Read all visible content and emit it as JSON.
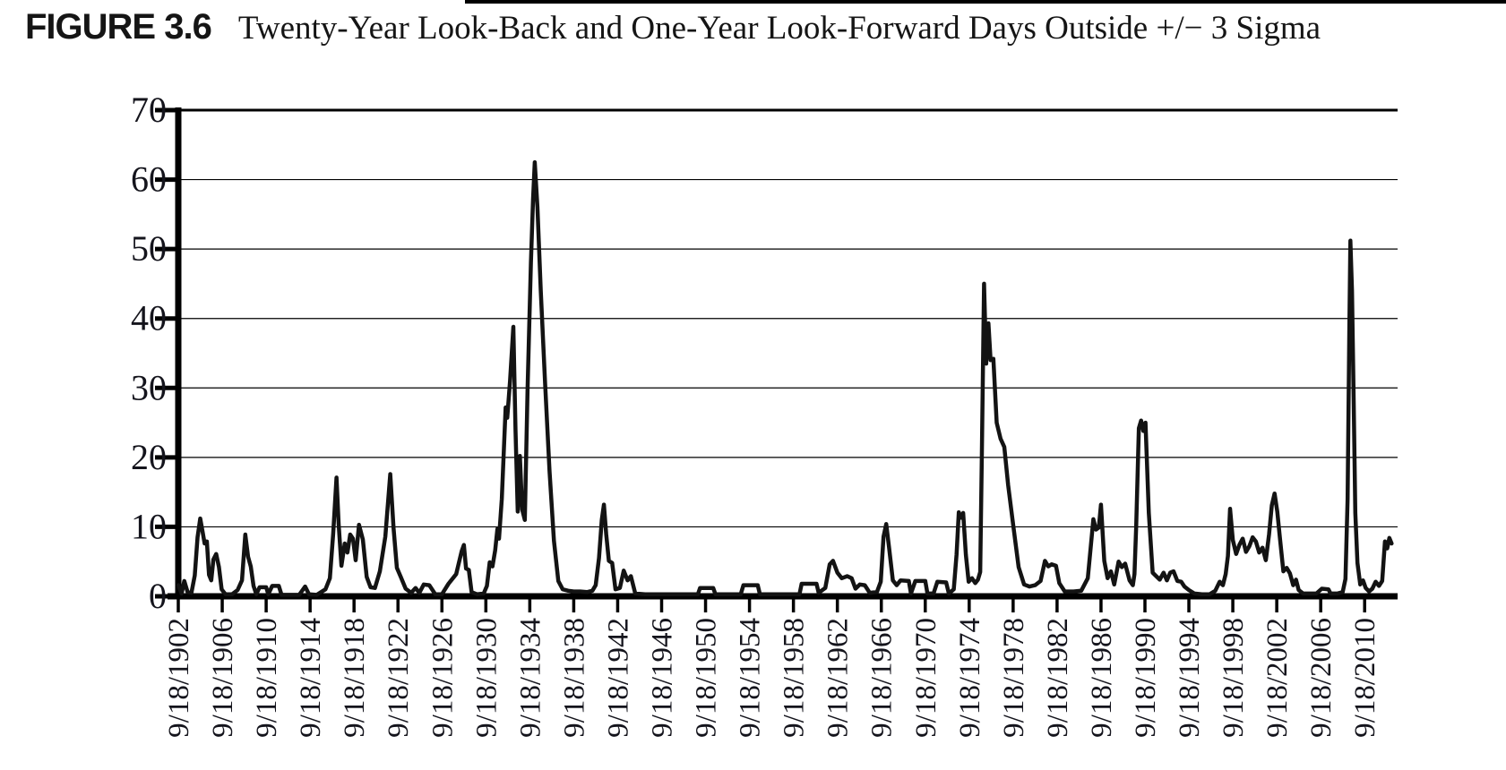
{
  "figure": {
    "label": "FIGURE 3.6",
    "title": "Twenty-Year Look-Back and One-Year Look-Forward Days Outside +/− 3 Sigma"
  },
  "chart_data": {
    "type": "line",
    "title": "Twenty-Year Look-Back and One-Year Look-Forward Days Outside +/− 3 Sigma",
    "xlabel": "",
    "ylabel": "",
    "ylim": [
      0,
      70
    ],
    "xlim": [
      1902,
      2013
    ],
    "y_ticks": [
      0,
      10,
      20,
      30,
      40,
      50,
      60,
      70
    ],
    "x_tick_years": [
      1902,
      1906,
      1910,
      1914,
      1918,
      1922,
      1926,
      1930,
      1934,
      1938,
      1942,
      1946,
      1950,
      1954,
      1958,
      1962,
      1966,
      1970,
      1974,
      1978,
      1982,
      1986,
      1990,
      1994,
      1998,
      2002,
      2006,
      2010
    ],
    "x_tick_labels": [
      "9/18/1902",
      "9/18/1906",
      "9/18/1910",
      "9/18/1914",
      "9/18/1918",
      "9/18/1922",
      "9/18/1926",
      "9/18/1930",
      "9/18/1934",
      "9/18/1938",
      "9/18/1942",
      "9/18/1946",
      "9/18/1950",
      "9/18/1954",
      "9/18/1958",
      "9/18/1962",
      "9/18/1966",
      "9/18/1970",
      "9/18/1974",
      "9/18/1978",
      "9/18/1982",
      "9/18/1986",
      "9/18/1990",
      "9/18/1994",
      "9/18/1998",
      "9/18/2002",
      "9/18/2006",
      "9/18/2010"
    ],
    "grid": "horizontal",
    "legend": "none",
    "line_color": "#131313",
    "series": [
      {
        "name": "days-outside-3-sigma",
        "points": [
          [
            1902.0,
            1.6
          ],
          [
            1902.3,
            0.4
          ],
          [
            1902.55,
            2.2
          ],
          [
            1902.85,
            0.6
          ],
          [
            1903.2,
            0.5
          ],
          [
            1903.5,
            3.0
          ],
          [
            1903.75,
            8.5
          ],
          [
            1904.0,
            11.2
          ],
          [
            1904.2,
            9.4
          ],
          [
            1904.4,
            7.6
          ],
          [
            1904.6,
            7.9
          ],
          [
            1904.8,
            3.1
          ],
          [
            1905.0,
            2.3
          ],
          [
            1905.2,
            5.3
          ],
          [
            1905.45,
            6.1
          ],
          [
            1905.7,
            4.2
          ],
          [
            1905.95,
            1.0
          ],
          [
            1906.3,
            0.3
          ],
          [
            1906.9,
            0.3
          ],
          [
            1907.4,
            0.9
          ],
          [
            1907.8,
            2.3
          ],
          [
            1908.1,
            8.9
          ],
          [
            1908.35,
            5.7
          ],
          [
            1908.6,
            4.3
          ],
          [
            1908.85,
            1.5
          ],
          [
            1909.1,
            0.3
          ],
          [
            1909.4,
            1.3
          ],
          [
            1910.0,
            1.3
          ],
          [
            1910.2,
            0.3
          ],
          [
            1910.55,
            1.5
          ],
          [
            1911.15,
            1.5
          ],
          [
            1911.4,
            0.2
          ],
          [
            1912.2,
            0.2
          ],
          [
            1913.0,
            0.2
          ],
          [
            1913.55,
            1.4
          ],
          [
            1913.9,
            0.3
          ],
          [
            1914.6,
            0.2
          ],
          [
            1915.4,
            1.0
          ],
          [
            1915.8,
            2.6
          ],
          [
            1916.1,
            9.0
          ],
          [
            1916.4,
            17.1
          ],
          [
            1916.6,
            10.4
          ],
          [
            1916.85,
            4.4
          ],
          [
            1917.15,
            7.6
          ],
          [
            1917.4,
            6.3
          ],
          [
            1917.65,
            8.9
          ],
          [
            1917.9,
            8.3
          ],
          [
            1918.15,
            5.2
          ],
          [
            1918.45,
            10.3
          ],
          [
            1918.8,
            8.2
          ],
          [
            1919.15,
            2.8
          ],
          [
            1919.5,
            1.3
          ],
          [
            1919.9,
            1.2
          ],
          [
            1920.35,
            3.6
          ],
          [
            1920.85,
            8.6
          ],
          [
            1921.3,
            17.6
          ],
          [
            1921.6,
            9.8
          ],
          [
            1921.9,
            4.1
          ],
          [
            1922.25,
            2.8
          ],
          [
            1922.7,
            1.1
          ],
          [
            1923.2,
            0.5
          ],
          [
            1923.6,
            1.2
          ],
          [
            1923.95,
            0.5
          ],
          [
            1924.35,
            1.7
          ],
          [
            1924.85,
            1.6
          ],
          [
            1925.4,
            0.3
          ],
          [
            1926.0,
            0.3
          ],
          [
            1926.6,
            1.8
          ],
          [
            1927.3,
            3.2
          ],
          [
            1927.8,
            6.5
          ],
          [
            1928.0,
            7.4
          ],
          [
            1928.2,
            4.0
          ],
          [
            1928.45,
            3.8
          ],
          [
            1928.7,
            0.6
          ],
          [
            1929.2,
            0.3
          ],
          [
            1929.8,
            0.4
          ],
          [
            1930.1,
            1.5
          ],
          [
            1930.35,
            4.9
          ],
          [
            1930.6,
            4.3
          ],
          [
            1930.85,
            6.6
          ],
          [
            1931.05,
            9.7
          ],
          [
            1931.2,
            8.3
          ],
          [
            1931.45,
            14.0
          ],
          [
            1931.8,
            27.2
          ],
          [
            1931.95,
            25.7
          ],
          [
            1932.2,
            31.0
          ],
          [
            1932.5,
            38.8
          ],
          [
            1932.7,
            24.0
          ],
          [
            1932.9,
            12.2
          ],
          [
            1933.1,
            20.2
          ],
          [
            1933.3,
            12.5
          ],
          [
            1933.55,
            11.0
          ],
          [
            1933.8,
            30.0
          ],
          [
            1934.1,
            48.0
          ],
          [
            1934.3,
            57.2
          ],
          [
            1934.45,
            62.5
          ],
          [
            1934.7,
            56.0
          ],
          [
            1935.0,
            44.0
          ],
          [
            1935.4,
            30.5
          ],
          [
            1935.8,
            18.0
          ],
          [
            1936.2,
            8.0
          ],
          [
            1936.6,
            2.2
          ],
          [
            1937.0,
            1.0
          ],
          [
            1937.5,
            0.8
          ],
          [
            1938.0,
            0.7
          ],
          [
            1938.6,
            0.7
          ],
          [
            1939.2,
            0.6
          ],
          [
            1939.7,
            0.8
          ],
          [
            1940.0,
            1.6
          ],
          [
            1940.3,
            5.5
          ],
          [
            1940.55,
            11.0
          ],
          [
            1940.75,
            13.2
          ],
          [
            1940.95,
            9.0
          ],
          [
            1941.2,
            5.1
          ],
          [
            1941.5,
            4.8
          ],
          [
            1941.8,
            1.0
          ],
          [
            1942.2,
            1.2
          ],
          [
            1942.55,
            3.7
          ],
          [
            1942.9,
            2.3
          ],
          [
            1943.2,
            2.9
          ],
          [
            1943.6,
            0.4
          ],
          [
            1944.5,
            0.3
          ],
          [
            1945.5,
            0.3
          ],
          [
            1946.5,
            0.3
          ],
          [
            1947.5,
            0.3
          ],
          [
            1948.5,
            0.3
          ],
          [
            1949.3,
            0.3
          ],
          [
            1949.5,
            1.2
          ],
          [
            1950.7,
            1.2
          ],
          [
            1950.9,
            0.3
          ],
          [
            1951.8,
            0.3
          ],
          [
            1953.2,
            0.3
          ],
          [
            1953.45,
            1.6
          ],
          [
            1954.75,
            1.6
          ],
          [
            1954.95,
            0.3
          ],
          [
            1956.0,
            0.3
          ],
          [
            1957.0,
            0.3
          ],
          [
            1958.0,
            0.3
          ],
          [
            1958.55,
            0.3
          ],
          [
            1958.75,
            1.8
          ],
          [
            1960.1,
            1.8
          ],
          [
            1960.3,
            0.5
          ],
          [
            1960.9,
            1.2
          ],
          [
            1961.3,
            4.6
          ],
          [
            1961.6,
            5.1
          ],
          [
            1962.0,
            3.4
          ],
          [
            1962.4,
            2.6
          ],
          [
            1962.9,
            2.9
          ],
          [
            1963.3,
            2.6
          ],
          [
            1963.65,
            1.1
          ],
          [
            1964.05,
            1.7
          ],
          [
            1964.5,
            1.6
          ],
          [
            1964.95,
            0.5
          ],
          [
            1965.6,
            0.6
          ],
          [
            1965.95,
            2.1
          ],
          [
            1966.2,
            8.6
          ],
          [
            1966.45,
            10.4
          ],
          [
            1966.7,
            7.1
          ],
          [
            1967.05,
            2.3
          ],
          [
            1967.4,
            1.6
          ],
          [
            1967.75,
            2.3
          ],
          [
            1968.5,
            2.2
          ],
          [
            1968.7,
            0.4
          ],
          [
            1969.1,
            2.2
          ],
          [
            1970.0,
            2.2
          ],
          [
            1970.2,
            0.4
          ],
          [
            1970.75,
            0.4
          ],
          [
            1971.1,
            2.1
          ],
          [
            1971.9,
            2.0
          ],
          [
            1972.15,
            0.4
          ],
          [
            1972.6,
            1.0
          ],
          [
            1972.85,
            6.0
          ],
          [
            1973.05,
            12.1
          ],
          [
            1973.25,
            11.3
          ],
          [
            1973.45,
            12.0
          ],
          [
            1973.7,
            6.0
          ],
          [
            1973.95,
            2.1
          ],
          [
            1974.25,
            2.6
          ],
          [
            1974.55,
            1.9
          ],
          [
            1974.8,
            2.4
          ],
          [
            1975.0,
            3.5
          ],
          [
            1975.15,
            20.0
          ],
          [
            1975.35,
            45.0
          ],
          [
            1975.55,
            33.5
          ],
          [
            1975.75,
            39.3
          ],
          [
            1975.95,
            34.0
          ],
          [
            1976.2,
            34.2
          ],
          [
            1976.5,
            25.0
          ],
          [
            1976.85,
            22.7
          ],
          [
            1977.2,
            21.5
          ],
          [
            1977.55,
            16.0
          ],
          [
            1978.0,
            10.3
          ],
          [
            1978.5,
            4.2
          ],
          [
            1979.0,
            1.7
          ],
          [
            1979.5,
            1.4
          ],
          [
            1980.0,
            1.6
          ],
          [
            1980.5,
            2.2
          ],
          [
            1980.9,
            5.1
          ],
          [
            1981.2,
            4.3
          ],
          [
            1981.5,
            4.6
          ],
          [
            1981.9,
            4.4
          ],
          [
            1982.2,
            1.9
          ],
          [
            1982.7,
            0.7
          ],
          [
            1983.5,
            0.7
          ],
          [
            1984.2,
            0.8
          ],
          [
            1984.8,
            2.6
          ],
          [
            1985.3,
            11.1
          ],
          [
            1985.55,
            9.6
          ],
          [
            1985.8,
            9.9
          ],
          [
            1986.0,
            13.2
          ],
          [
            1986.3,
            5.1
          ],
          [
            1986.6,
            2.6
          ],
          [
            1986.9,
            3.6
          ],
          [
            1987.2,
            1.7
          ],
          [
            1987.6,
            5.0
          ],
          [
            1987.9,
            4.2
          ],
          [
            1988.2,
            4.7
          ],
          [
            1988.6,
            2.3
          ],
          [
            1988.9,
            1.6
          ],
          [
            1989.05,
            3.2
          ],
          [
            1989.2,
            10.0
          ],
          [
            1989.45,
            24.2
          ],
          [
            1989.65,
            25.3
          ],
          [
            1989.85,
            23.8
          ],
          [
            1990.05,
            25.0
          ],
          [
            1990.35,
            12.0
          ],
          [
            1990.7,
            3.4
          ],
          [
            1991.35,
            2.4
          ],
          [
            1991.7,
            3.4
          ],
          [
            1992.0,
            2.3
          ],
          [
            1992.3,
            3.4
          ],
          [
            1992.6,
            3.6
          ],
          [
            1992.95,
            2.2
          ],
          [
            1993.3,
            2.1
          ],
          [
            1993.6,
            1.4
          ],
          [
            1994.0,
            0.9
          ],
          [
            1994.5,
            0.4
          ],
          [
            1995.2,
            0.3
          ],
          [
            1995.9,
            0.3
          ],
          [
            1996.4,
            0.8
          ],
          [
            1996.8,
            2.1
          ],
          [
            1997.1,
            1.6
          ],
          [
            1997.35,
            3.2
          ],
          [
            1997.55,
            5.8
          ],
          [
            1997.75,
            12.6
          ],
          [
            1998.0,
            8.1
          ],
          [
            1998.3,
            6.1
          ],
          [
            1998.6,
            7.4
          ],
          [
            1998.9,
            8.3
          ],
          [
            1999.2,
            6.4
          ],
          [
            1999.5,
            7.2
          ],
          [
            1999.8,
            8.5
          ],
          [
            2000.1,
            7.9
          ],
          [
            2000.4,
            6.3
          ],
          [
            2000.7,
            7.0
          ],
          [
            2001.0,
            5.2
          ],
          [
            2001.3,
            8.9
          ],
          [
            2001.55,
            13.1
          ],
          [
            2001.8,
            14.8
          ],
          [
            2002.05,
            12.2
          ],
          [
            2002.3,
            8.2
          ],
          [
            2002.6,
            3.6
          ],
          [
            2002.9,
            4.1
          ],
          [
            2003.2,
            3.3
          ],
          [
            2003.5,
            1.6
          ],
          [
            2003.75,
            2.4
          ],
          [
            2004.0,
            0.9
          ],
          [
            2004.4,
            0.4
          ],
          [
            2005.0,
            0.4
          ],
          [
            2005.6,
            0.4
          ],
          [
            2006.1,
            1.1
          ],
          [
            2006.7,
            1.0
          ],
          [
            2006.9,
            0.4
          ],
          [
            2007.5,
            0.4
          ],
          [
            2008.0,
            0.6
          ],
          [
            2008.25,
            2.5
          ],
          [
            2008.45,
            14.0
          ],
          [
            2008.6,
            38.0
          ],
          [
            2008.7,
            51.2
          ],
          [
            2008.85,
            44.0
          ],
          [
            2009.0,
            28.0
          ],
          [
            2009.15,
            12.0
          ],
          [
            2009.35,
            4.8
          ],
          [
            2009.6,
            1.7
          ],
          [
            2009.85,
            2.3
          ],
          [
            2010.1,
            1.2
          ],
          [
            2010.4,
            0.7
          ],
          [
            2010.7,
            1.1
          ],
          [
            2011.0,
            2.1
          ],
          [
            2011.3,
            1.5
          ],
          [
            2011.6,
            2.2
          ],
          [
            2011.85,
            7.9
          ],
          [
            2012.05,
            6.9
          ],
          [
            2012.25,
            8.4
          ],
          [
            2012.45,
            7.6
          ]
        ]
      }
    ]
  }
}
